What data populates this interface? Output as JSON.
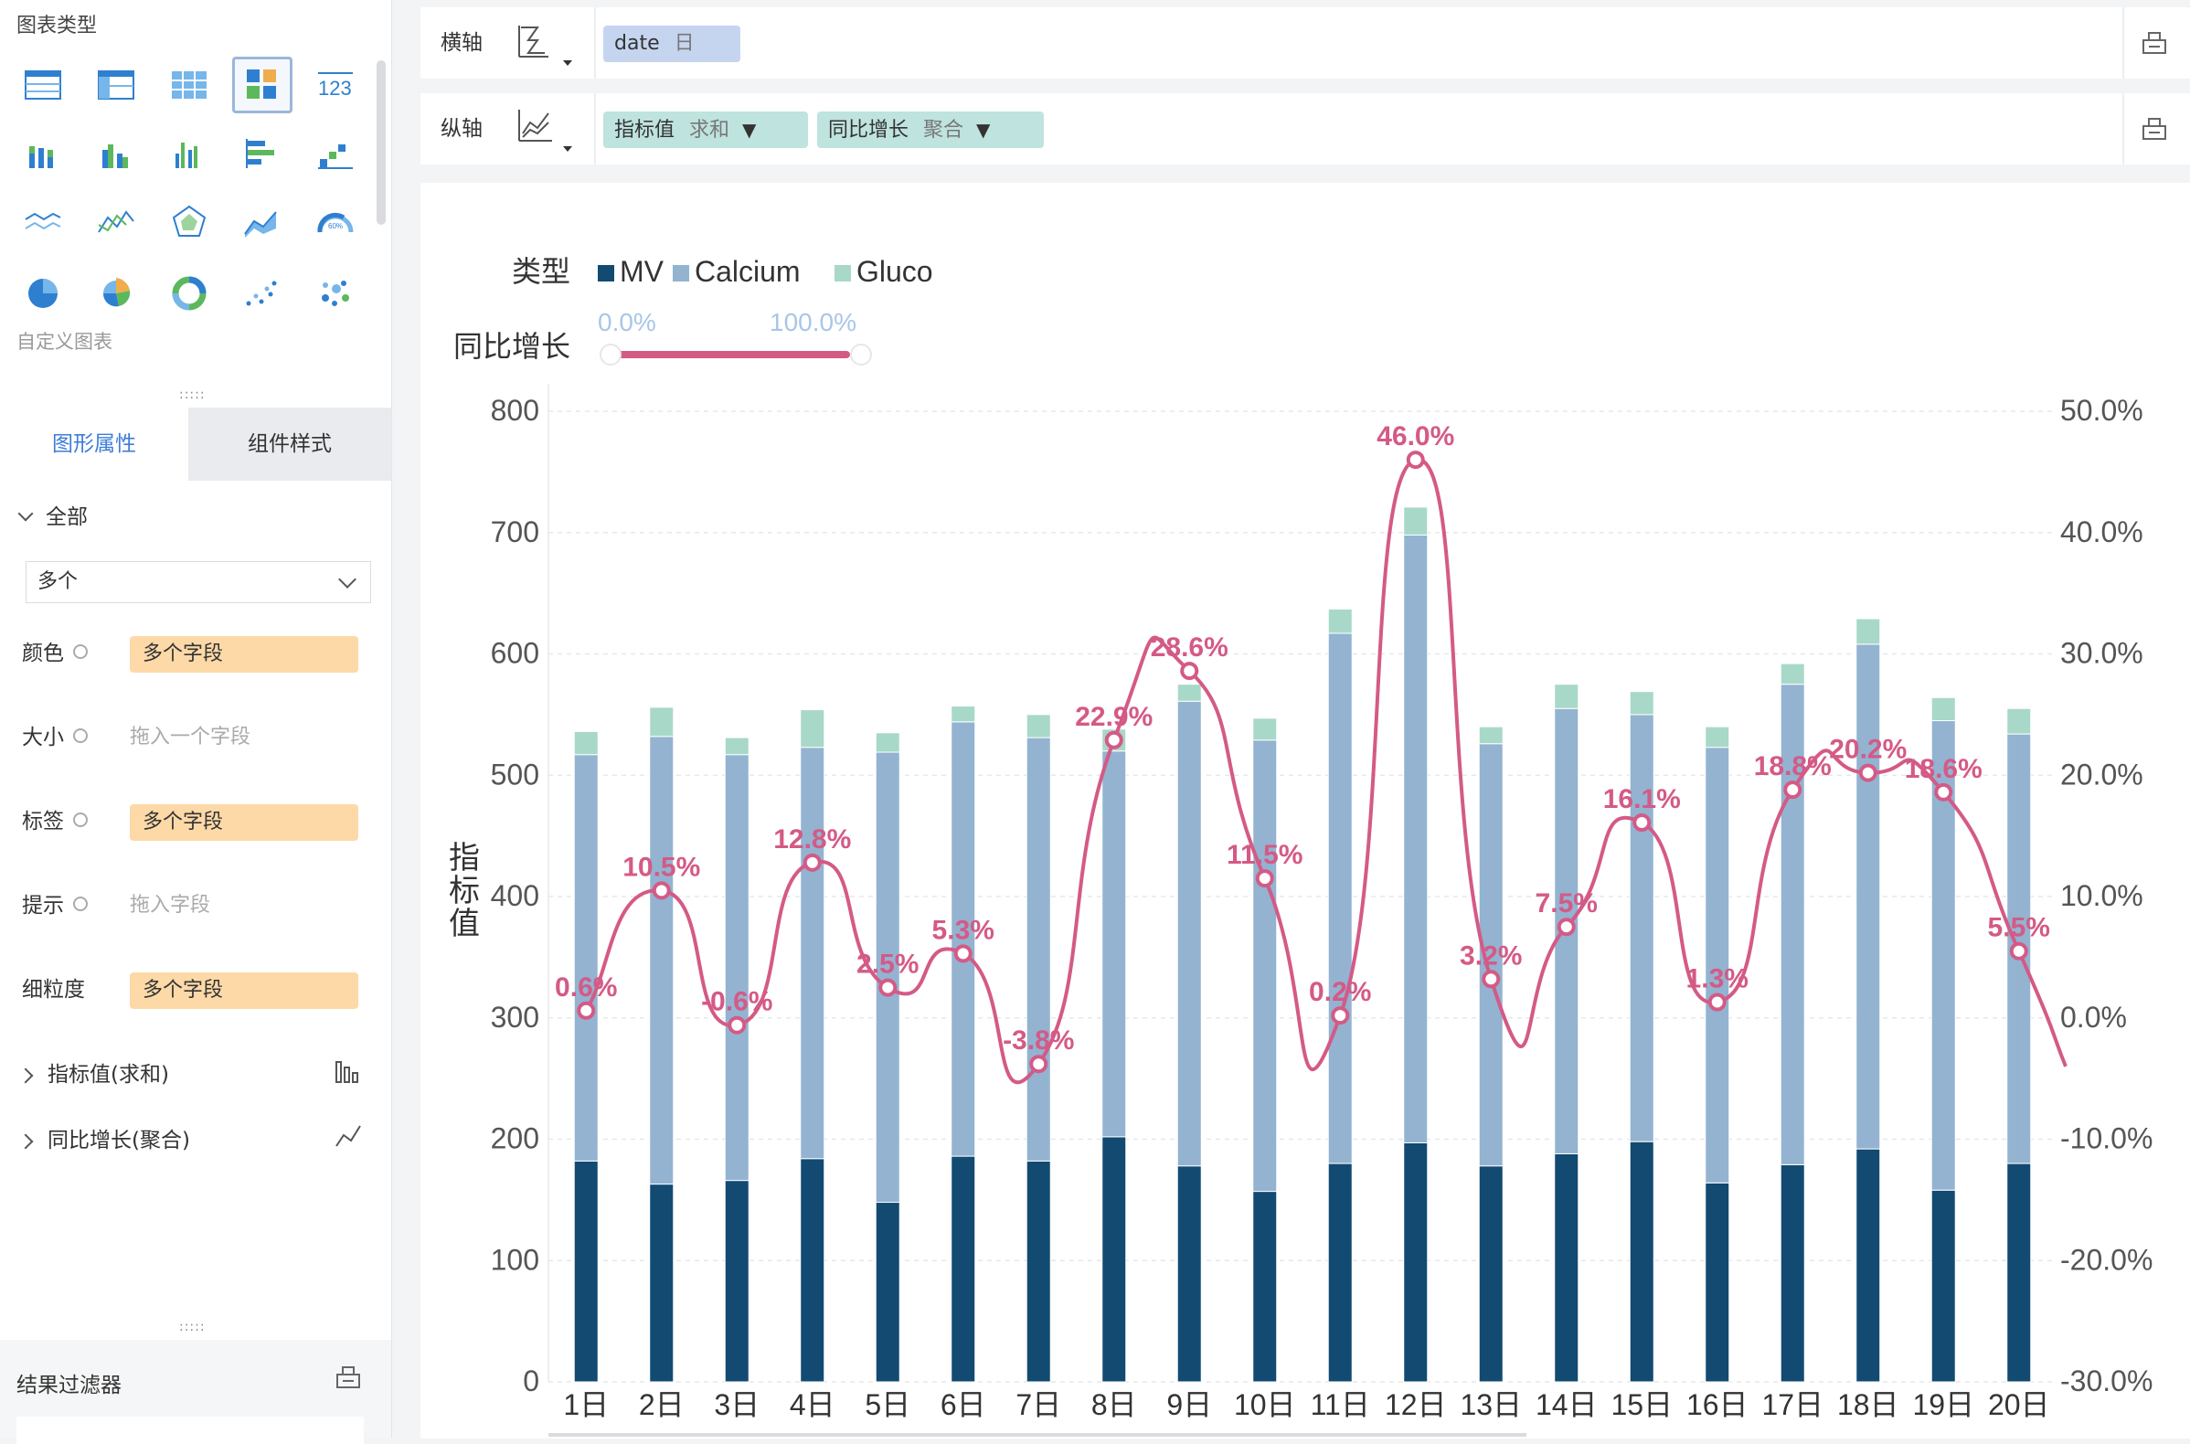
{
  "left_panel": {
    "chart_type_title": "图表类型",
    "custom_chart_label": "自定义图表",
    "tabs": {
      "properties": "图形属性",
      "component_style": "组件样式"
    },
    "section_all": "全部",
    "dropdown_value": "多个",
    "props": [
      {
        "label": "颜色",
        "value": "多个字段",
        "type": "pill"
      },
      {
        "label": "大小",
        "value": "拖入一个字段",
        "type": "placeholder"
      },
      {
        "label": "标签",
        "value": "多个字段",
        "type": "pill"
      },
      {
        "label": "提示",
        "value": "拖入字段",
        "type": "placeholder"
      },
      {
        "label": "细粒度",
        "value": "多个字段",
        "type": "pill"
      }
    ],
    "measures": [
      {
        "label": "指标值(求和)",
        "icon": "bar-chart-icon"
      },
      {
        "label": "同比增长(聚合)",
        "icon": "line-chart-icon"
      }
    ],
    "result_filter": "结果过滤器"
  },
  "top": {
    "x_axis_label": "横轴",
    "y_axis_label": "纵轴",
    "x_field": {
      "name": "date",
      "sub": "日"
    },
    "y_fields": [
      {
        "name": "指标值",
        "sub": "求和"
      },
      {
        "name": "同比增长",
        "sub": "聚合"
      }
    ]
  },
  "colors": {
    "mv": "#124a72",
    "calcium": "#93b3d1",
    "gluco": "#a8d8c8",
    "line": "#d45a86",
    "accent_blue": "#3d7dd8",
    "pill_orange": "#fdd9a8",
    "pill_blue": "#c5d5ef",
    "pill_green": "#bfe3df"
  },
  "chart_data": {
    "type": "bar",
    "legend_title": "类型",
    "slider_title": "同比增长",
    "slider_min": "0.0%",
    "slider_max": "100.0%",
    "ylabel": "指标值",
    "ylim": [
      0,
      800
    ],
    "y2lim": [
      -30,
      50
    ],
    "y_ticks": [
      "0",
      "100",
      "200",
      "300",
      "400",
      "500",
      "600",
      "700",
      "800"
    ],
    "y2_ticks": [
      "-30.0%",
      "-20.0%",
      "-10.0%",
      "0.0%",
      "10.0%",
      "20.0%",
      "30.0%",
      "40.0%",
      "50.0%"
    ],
    "categories": [
      "1日",
      "2日",
      "3日",
      "4日",
      "5日",
      "6日",
      "7日",
      "8日",
      "9日",
      "10日",
      "11日",
      "12日",
      "13日",
      "14日",
      "15日",
      "16日",
      "17日",
      "18日",
      "19日",
      "20日"
    ],
    "series": [
      {
        "name": "MV",
        "values": [
          182,
          163,
          166,
          184,
          148,
          186,
          182,
          202,
          178,
          157,
          180,
          197,
          178,
          188,
          198,
          164,
          179,
          192,
          158,
          180
        ]
      },
      {
        "name": "Calcium",
        "values": [
          335,
          369,
          351,
          339,
          371,
          358,
          349,
          318,
          383,
          372,
          437,
          501,
          348,
          367,
          352,
          359,
          396,
          416,
          387,
          354
        ]
      },
      {
        "name": "Gluco",
        "values": [
          19,
          24,
          14,
          31,
          16,
          13,
          19,
          18,
          14,
          18,
          20,
          23,
          14,
          20,
          19,
          17,
          17,
          21,
          19,
          21
        ]
      }
    ],
    "line_series": {
      "name": "同比增长",
      "values": [
        0.6,
        10.5,
        -0.6,
        12.8,
        2.5,
        5.3,
        -3.8,
        22.9,
        28.6,
        11.5,
        0.2,
        46.0,
        3.2,
        7.5,
        16.1,
        1.3,
        18.8,
        20.2,
        18.6,
        5.5
      ],
      "labels": [
        "0.6%",
        "10.5%",
        "-0.6%",
        "12.8%",
        "2.5%",
        "5.3%",
        "-3.8%",
        "22.9%",
        "28.6%",
        "11.5%",
        "0.2%",
        "46.0%",
        "3.2%",
        "7.5%",
        "16.1%",
        "1.3%",
        "18.8%",
        "20.2%",
        "18.6%",
        "5.5%"
      ]
    },
    "legend_position": "top-left"
  }
}
